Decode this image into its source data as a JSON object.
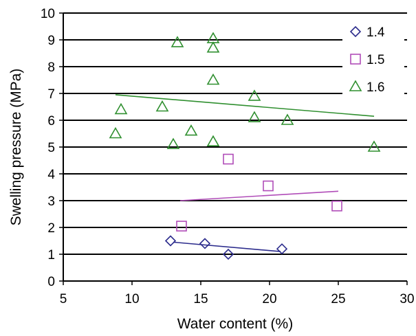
{
  "chart_data": {
    "type": "scatter",
    "title": "",
    "xlabel": "Water content (%)",
    "ylabel": "Swelling pressure (MPa)",
    "xlim": [
      5,
      30
    ],
    "ylim": [
      0,
      10
    ],
    "x_ticks": [
      "5",
      "10",
      "15",
      "20",
      "25",
      "30"
    ],
    "y_ticks": [
      "0",
      "1",
      "2",
      "3",
      "4",
      "5",
      "6",
      "7",
      "8",
      "9",
      "10"
    ],
    "grid": "horizontal",
    "legend_position": "top-right",
    "series": [
      {
        "name": "1.4",
        "marker": "diamond",
        "color": "#2b2b8c",
        "points": [
          [
            12.8,
            1.5
          ],
          [
            15.3,
            1.4
          ],
          [
            17.0,
            1.0
          ],
          [
            20.9,
            1.2
          ]
        ],
        "trend": [
          [
            13.0,
            1.45
          ],
          [
            20.8,
            1.1
          ]
        ]
      },
      {
        "name": "1.5",
        "marker": "square",
        "color": "#b04cb8",
        "points": [
          [
            13.6,
            2.05
          ],
          [
            17.0,
            4.55
          ],
          [
            19.9,
            3.55
          ],
          [
            24.9,
            2.8
          ]
        ],
        "trend": [
          [
            13.5,
            3.0
          ],
          [
            25.0,
            3.35
          ]
        ]
      },
      {
        "name": "1.6",
        "marker": "triangle",
        "color": "#2f8f2f",
        "points": [
          [
            8.8,
            5.5
          ],
          [
            9.2,
            6.4
          ],
          [
            12.2,
            6.5
          ],
          [
            13.0,
            5.1
          ],
          [
            13.3,
            8.9
          ],
          [
            14.3,
            5.6
          ],
          [
            15.9,
            5.2
          ],
          [
            15.9,
            7.5
          ],
          [
            15.9,
            8.7
          ],
          [
            15.9,
            9.05
          ],
          [
            18.9,
            6.9
          ],
          [
            18.9,
            6.1
          ],
          [
            21.3,
            6.0
          ],
          [
            27.6,
            5.0
          ]
        ],
        "trend": [
          [
            8.8,
            6.95
          ],
          [
            27.6,
            6.15
          ]
        ]
      }
    ]
  }
}
